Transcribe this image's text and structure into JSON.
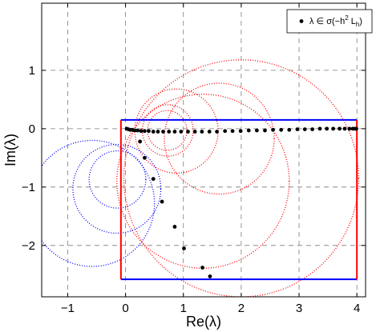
{
  "chart_data": {
    "type": "scatter",
    "title": "",
    "xlabel": "Re(λ)",
    "ylabel": "Im(λ)",
    "xlim": [
      -1.45,
      4.15
    ],
    "ylim": [
      -2.88,
      2.15
    ],
    "grid": true,
    "legend_position": "top-right",
    "x_ticks": [
      -1,
      0,
      1,
      2,
      3,
      4
    ],
    "x_tick_labels": [
      "−1",
      "0",
      "1",
      "2",
      "3",
      "4"
    ],
    "y_ticks": [
      -2,
      -1,
      0,
      1
    ],
    "y_tick_labels": [
      "−2",
      "−1",
      "0",
      "1"
    ],
    "series": [
      {
        "name": "λ ∈ σ(−h² L_h)",
        "legend_label": {
          "main": "λ ∈ σ(−h",
          "sup": "2",
          "mid": " L",
          "sub": "h",
          "end": ")"
        },
        "marker": "dot",
        "color": "#000000",
        "points": [
          [
            0.02,
            0.0
          ],
          [
            0.05,
            -0.01
          ],
          [
            0.08,
            -0.02
          ],
          [
            0.12,
            -0.02
          ],
          [
            0.16,
            -0.03
          ],
          [
            0.21,
            -0.03
          ],
          [
            0.27,
            -0.04
          ],
          [
            0.33,
            -0.04
          ],
          [
            0.4,
            -0.04
          ],
          [
            0.48,
            -0.05
          ],
          [
            0.56,
            -0.05
          ],
          [
            0.65,
            -0.05
          ],
          [
            0.75,
            -0.05
          ],
          [
            0.85,
            -0.05
          ],
          [
            0.96,
            -0.05
          ],
          [
            1.08,
            -0.05
          ],
          [
            1.2,
            -0.05
          ],
          [
            1.32,
            -0.05
          ],
          [
            1.45,
            -0.05
          ],
          [
            1.58,
            -0.05
          ],
          [
            1.72,
            -0.04
          ],
          [
            1.85,
            -0.04
          ],
          [
            1.99,
            -0.04
          ],
          [
            2.13,
            -0.03
          ],
          [
            2.27,
            -0.03
          ],
          [
            2.41,
            -0.03
          ],
          [
            2.55,
            -0.02
          ],
          [
            2.69,
            -0.02
          ],
          [
            2.83,
            -0.02
          ],
          [
            2.97,
            -0.01
          ],
          [
            3.1,
            -0.01
          ],
          [
            3.23,
            -0.01
          ],
          [
            3.36,
            0.0
          ],
          [
            3.48,
            0.0
          ],
          [
            3.59,
            0.0
          ],
          [
            3.7,
            0.0
          ],
          [
            3.79,
            0.0
          ],
          [
            3.87,
            0.0
          ],
          [
            3.93,
            0.0
          ],
          [
            3.97,
            0.0
          ],
          [
            3.99,
            0.0
          ],
          [
            0.25,
            -0.22
          ],
          [
            0.33,
            -0.5
          ],
          [
            0.48,
            -0.86
          ],
          [
            0.63,
            -1.25
          ],
          [
            0.85,
            -1.68
          ],
          [
            1.01,
            -2.05
          ],
          [
            1.33,
            -2.38
          ],
          [
            1.46,
            -2.53
          ]
        ]
      }
    ],
    "circles": [
      {
        "cx": 2.0,
        "cy": -0.85,
        "r": 2.03,
        "color": "#ff0000"
      },
      {
        "cx": 1.62,
        "cy": -0.17,
        "r": 0.95,
        "color": "#ff0000"
      },
      {
        "cx": 1.34,
        "cy": -0.9,
        "r": 1.49,
        "color": "#ff0000"
      },
      {
        "cx": 0.88,
        "cy": -0.04,
        "r": 0.72,
        "color": "#ff0000"
      },
      {
        "cx": 0.73,
        "cy": -0.03,
        "r": 0.44,
        "color": "#ff0000"
      },
      {
        "cx": 0.72,
        "cy": -0.03,
        "r": 0.34,
        "color": "#ff0000"
      },
      {
        "cx": -0.58,
        "cy": -1.28,
        "r": 1.08,
        "color": "#0000ff"
      },
      {
        "cx": -0.15,
        "cy": -1.03,
        "r": 0.76,
        "color": "#0000ff"
      },
      {
        "cx": -0.14,
        "cy": -0.87,
        "r": 0.49,
        "color": "#0000ff"
      }
    ],
    "rectangle": {
      "x": [
        -0.08,
        4.0
      ],
      "y": [
        -2.58,
        0.15
      ],
      "top_bottom_color": "#0000ff",
      "left_right_color": "#ff0000"
    }
  }
}
